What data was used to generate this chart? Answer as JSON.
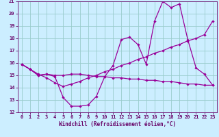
{
  "xlabel": "Windchill (Refroidissement éolien,°C)",
  "x": [
    0,
    1,
    2,
    3,
    4,
    5,
    6,
    7,
    8,
    9,
    10,
    11,
    12,
    13,
    14,
    15,
    16,
    17,
    18,
    19,
    20,
    21,
    22,
    23
  ],
  "line1": [
    15.9,
    15.5,
    15.0,
    15.1,
    14.9,
    13.2,
    12.5,
    12.5,
    12.6,
    13.3,
    14.9,
    15.8,
    17.9,
    18.1,
    17.5,
    15.9,
    19.4,
    21.0,
    20.5,
    20.8,
    17.9,
    15.6,
    15.1,
    14.2
  ],
  "line2": [
    15.9,
    15.5,
    15.0,
    15.1,
    15.0,
    15.0,
    15.1,
    15.1,
    15.0,
    14.9,
    14.9,
    14.8,
    14.8,
    14.7,
    14.7,
    14.6,
    14.6,
    14.5,
    14.5,
    14.4,
    14.3,
    14.3,
    14.2,
    14.2
  ],
  "line3": [
    15.9,
    15.5,
    15.1,
    14.8,
    14.4,
    14.1,
    14.3,
    14.5,
    14.8,
    15.0,
    15.3,
    15.5,
    15.8,
    16.0,
    16.3,
    16.5,
    16.8,
    17.0,
    17.3,
    17.5,
    17.8,
    18.0,
    18.3,
    19.4
  ],
  "line_color": "#990099",
  "bg_color": "#cceeff",
  "grid_color": "#99cccc",
  "text_color": "#660066",
  "ylim": [
    12,
    21
  ],
  "xlim": [
    -0.5,
    23.5
  ],
  "yticks": [
    12,
    13,
    14,
    15,
    16,
    17,
    18,
    19,
    20,
    21
  ],
  "xticks": [
    0,
    1,
    2,
    3,
    4,
    5,
    6,
    7,
    8,
    9,
    10,
    11,
    12,
    13,
    14,
    15,
    16,
    17,
    18,
    19,
    20,
    21,
    22,
    23
  ],
  "marker": "D",
  "markersize": 2.2,
  "linewidth": 0.9
}
